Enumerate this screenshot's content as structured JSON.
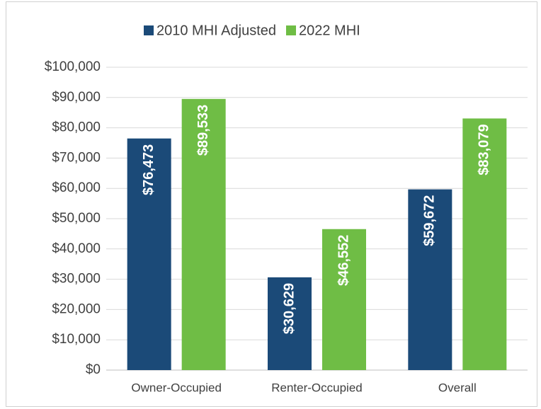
{
  "chart_data": {
    "type": "bar",
    "categories": [
      "Owner-Occupied",
      "Renter-Occupied",
      "Overall"
    ],
    "series": [
      {
        "name": "2010 MHI Adjusted",
        "color": "#1b4a78",
        "values": [
          76473,
          30629,
          59672
        ],
        "value_labels": [
          "$76,473",
          "$30,629",
          "$59,672"
        ]
      },
      {
        "name": "2022 MHI",
        "color": "#6fbd45",
        "values": [
          89533,
          46552,
          83079
        ],
        "value_labels": [
          "$89,533",
          "$46,552",
          "$83,079"
        ]
      }
    ],
    "ylim": [
      0,
      100000
    ],
    "yticks": [
      {
        "value": 0,
        "label": "$0"
      },
      {
        "value": 10000,
        "label": "$10,000"
      },
      {
        "value": 20000,
        "label": "$20,000"
      },
      {
        "value": 30000,
        "label": "$30,000"
      },
      {
        "value": 40000,
        "label": "$40,000"
      },
      {
        "value": 50000,
        "label": "$50,000"
      },
      {
        "value": 60000,
        "label": "$60,000"
      },
      {
        "value": 70000,
        "label": "$70,000"
      },
      {
        "value": 80000,
        "label": "$80,000"
      },
      {
        "value": 90000,
        "label": "$90,000"
      },
      {
        "value": 100000,
        "label": "$100,000"
      }
    ],
    "grid": true,
    "legend": "top"
  }
}
